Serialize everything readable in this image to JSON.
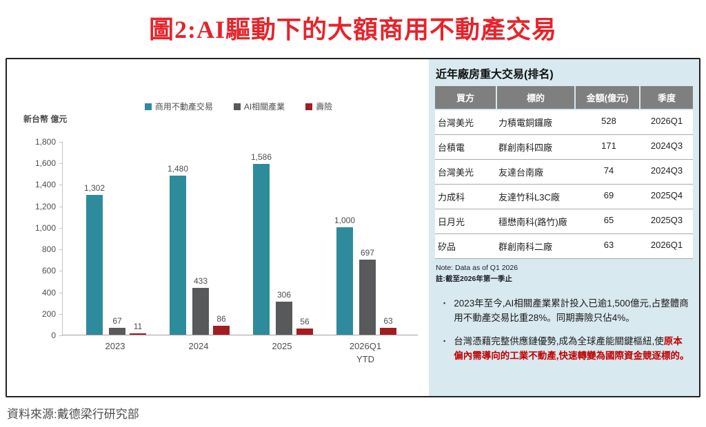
{
  "page": {
    "title": "圖2:AI驅動下的大額商用不動產交易",
    "source": "資料來源:戴德梁行研究部"
  },
  "chart_data": {
    "type": "bar",
    "title": "",
    "unit_label": "新台幣 億元",
    "categories": [
      "2023",
      "2024",
      "2025",
      "2026Q1 YTD"
    ],
    "series": [
      {
        "name": "商用不動產交易",
        "color": "#2E8B9C",
        "values": [
          1302,
          1480,
          1586,
          1000
        ]
      },
      {
        "name": "AI相關產業",
        "color": "#58595B",
        "values": [
          67,
          433,
          306,
          697
        ]
      },
      {
        "name": "壽險",
        "color": "#A21D21",
        "values": [
          11,
          86,
          56,
          63
        ]
      }
    ],
    "ylim": [
      0,
      1800
    ],
    "ytick_step": 200,
    "grid": false,
    "legend_position": "top"
  },
  "panel": {
    "title": "近年廠房重大交易(排名)",
    "table": {
      "headers": [
        "買方",
        "標的",
        "金額(億元)",
        "季度"
      ],
      "rows": [
        [
          "台灣美光",
          "力積電銅鑼廠",
          "528",
          "2026Q1"
        ],
        [
          "台積電",
          "群創南科四廠",
          "171",
          "2024Q3"
        ],
        [
          "台灣美光",
          "友達台南廠",
          "74",
          "2024Q3"
        ],
        [
          "力成科",
          "友達竹科L3C廠",
          "69",
          "2025Q4"
        ],
        [
          "日月光",
          "穩懋南科(路竹)廠",
          "65",
          "2025Q3"
        ],
        [
          "矽品",
          "群創南科二廠",
          "63",
          "2026Q1"
        ]
      ]
    },
    "note_en": "Note: Data as of Q1 2026",
    "note_zh": "註:截至2026年第一季止",
    "bullets": [
      {
        "text": "2023年至今,AI相關產業累計投入已逾1,500億元,占整體商用不動產交易比重28%。同期壽險只佔4%。",
        "highlight": ""
      },
      {
        "text": "台灣憑藉完整供應鏈優勢,成為全球產能關鍵樞紐,使",
        "highlight": "原本偏內需導向的工業不動產,快速轉變為國際資金競逐標的。"
      }
    ]
  },
  "colors": {
    "title_red": "#E5242B",
    "highlight_red": "#C00000",
    "panel_bg": "#D8E9EF",
    "table_header_bg": "#7f7f7f",
    "bar_teal": "#2E8B9C",
    "bar_gray": "#58595B",
    "bar_dark_red": "#A21D21"
  }
}
